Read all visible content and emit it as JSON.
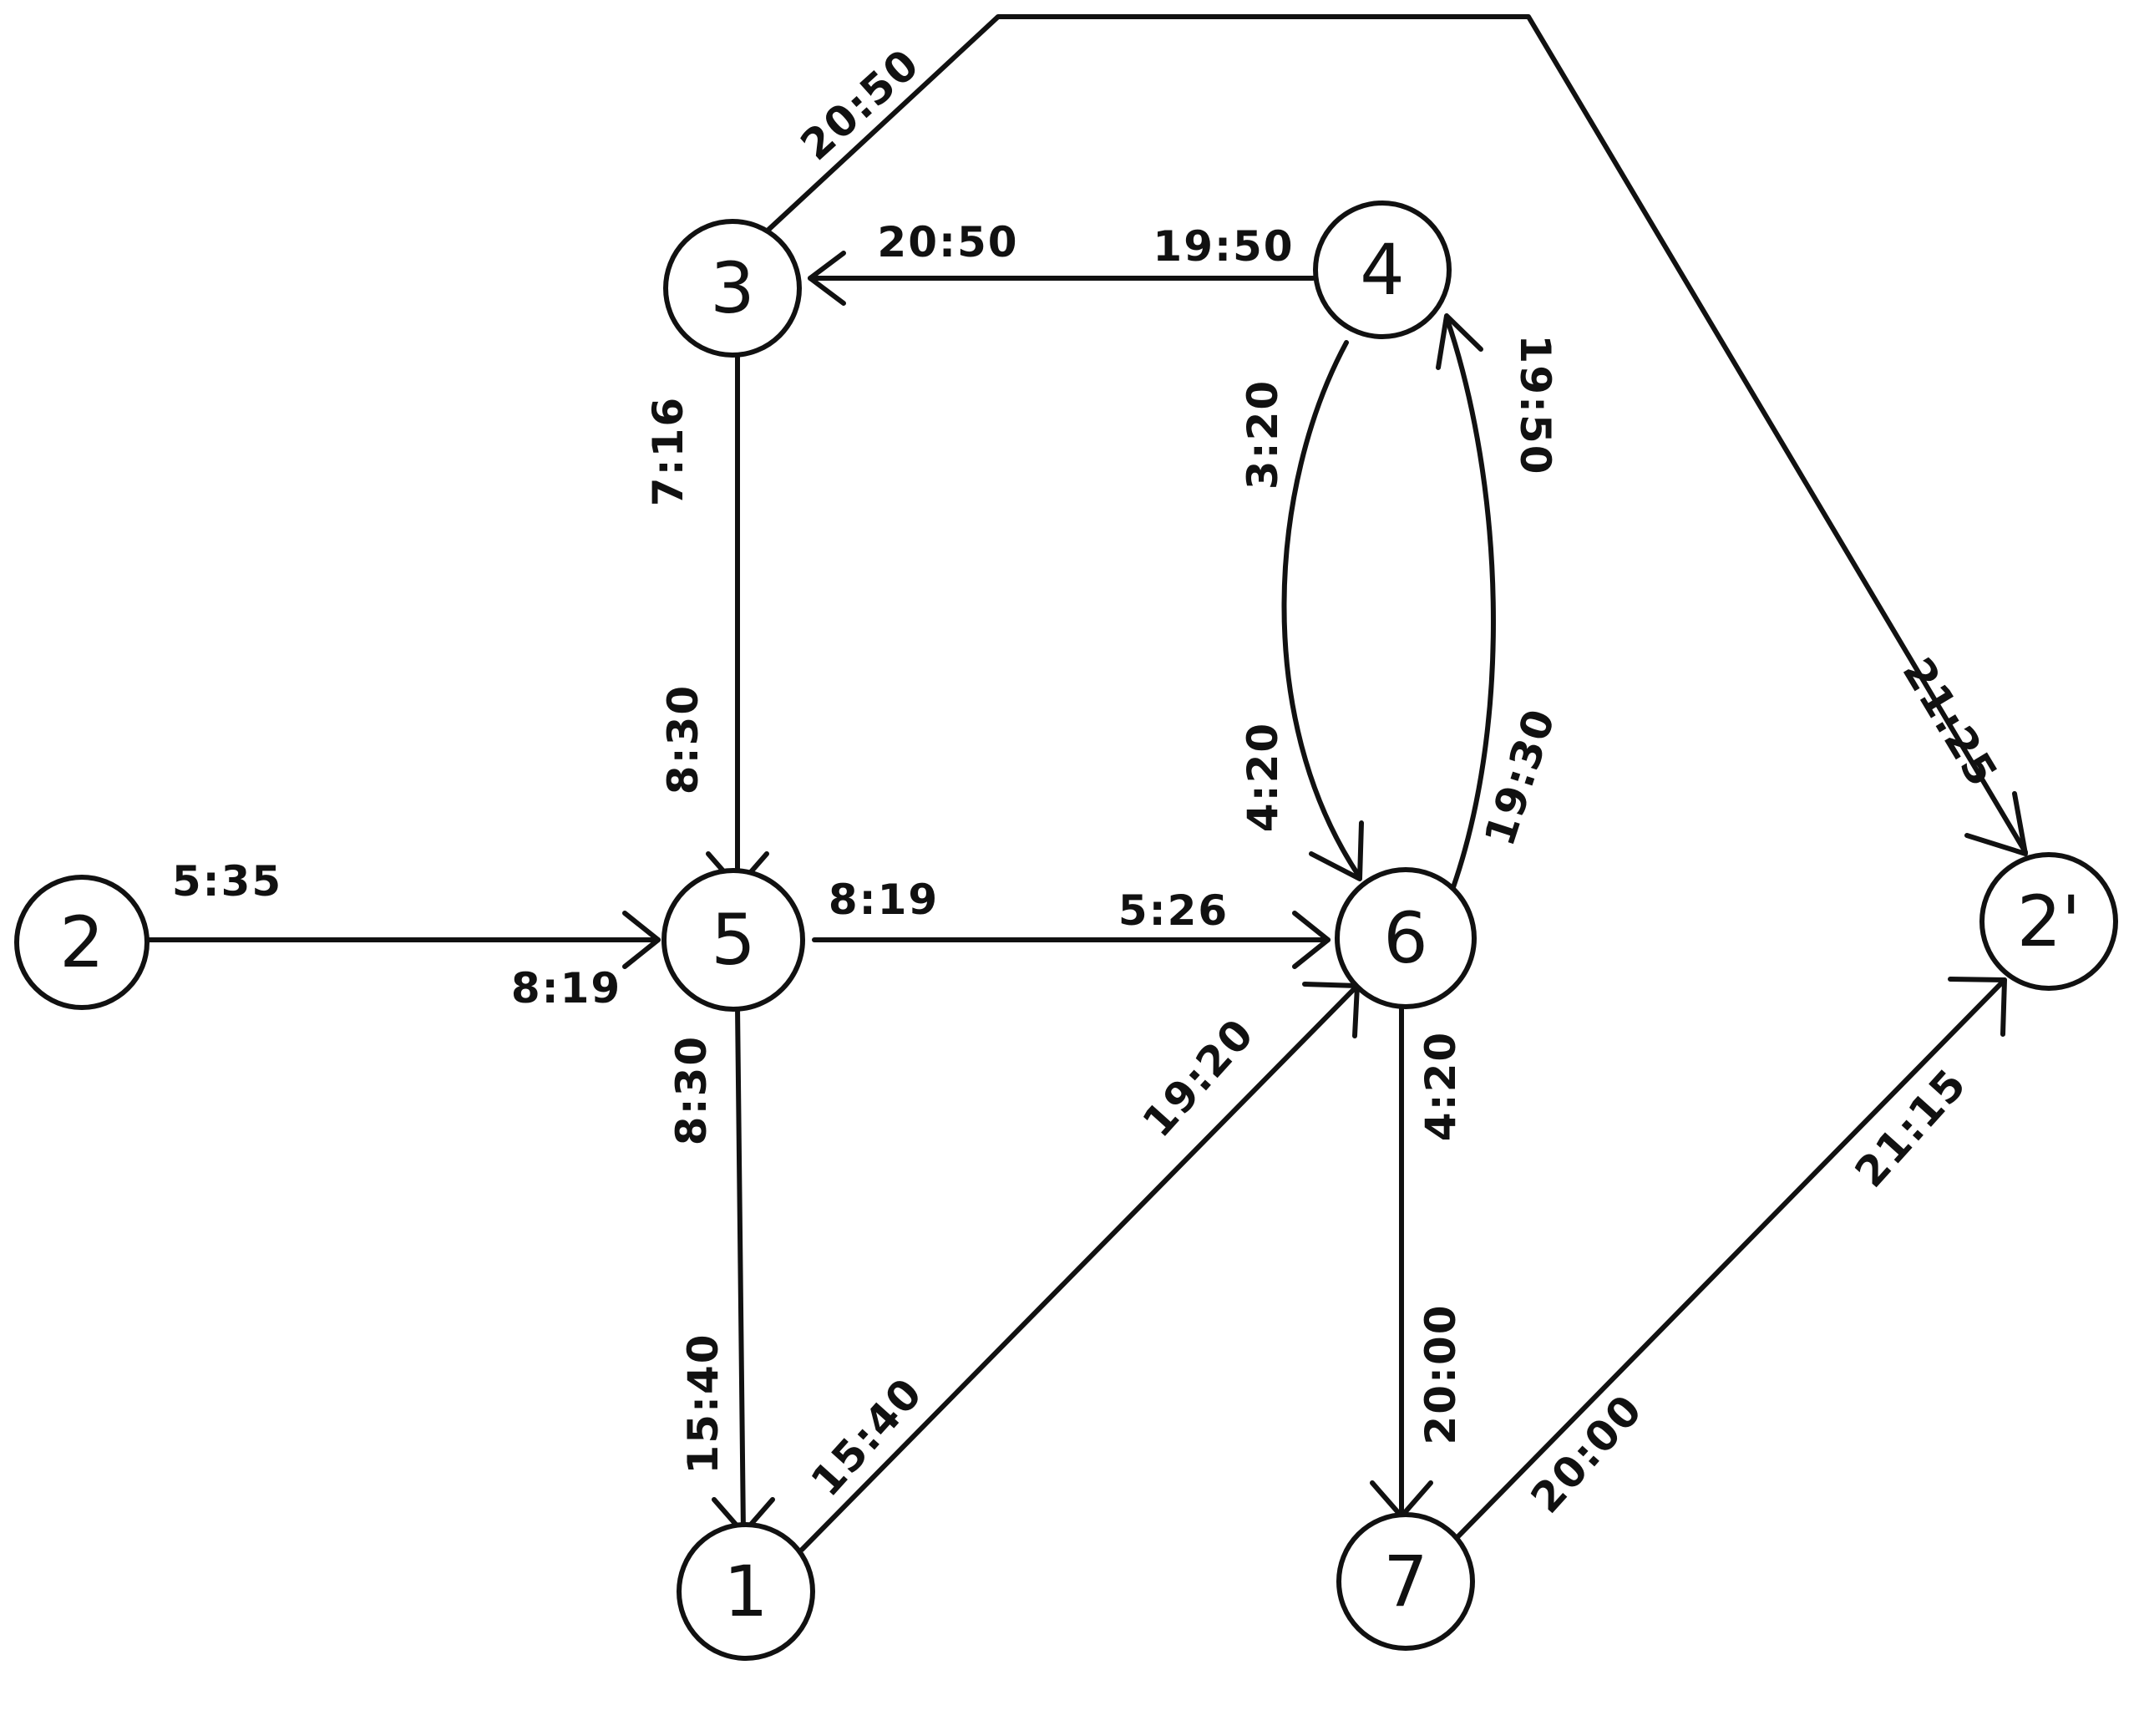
{
  "diagram": {
    "nodes": {
      "n1": "1",
      "n2": "2",
      "n2p": "2'",
      "n3": "3",
      "n4": "4",
      "n5": "5",
      "n6": "6",
      "n7": "7"
    },
    "labels": {
      "e3_2p_start": "20:50",
      "e3_2p_end": "21:25",
      "e4_3_start": "19:50",
      "e4_3_end": "20:50",
      "e3_5_start": "7:16",
      "e3_5_end": "8:30",
      "e4_6_start": "3:20",
      "e4_6_end": "4:20",
      "e6_4_start": "19:30",
      "e6_4_end": "19:50",
      "e2_5_start": "5:35",
      "e2_5_end": "8:19",
      "e5_6_start": "8:19",
      "e5_6_end": "5:26",
      "e5_1_start": "8:30",
      "e5_1_end": "15:40",
      "e1_6_start": "15:40",
      "e1_6_end": "19:20",
      "e6_7_start": "4:20",
      "e6_7_end": "20:00",
      "e7_2p_start": "20:00",
      "e7_2p_end": "21:15"
    }
  }
}
